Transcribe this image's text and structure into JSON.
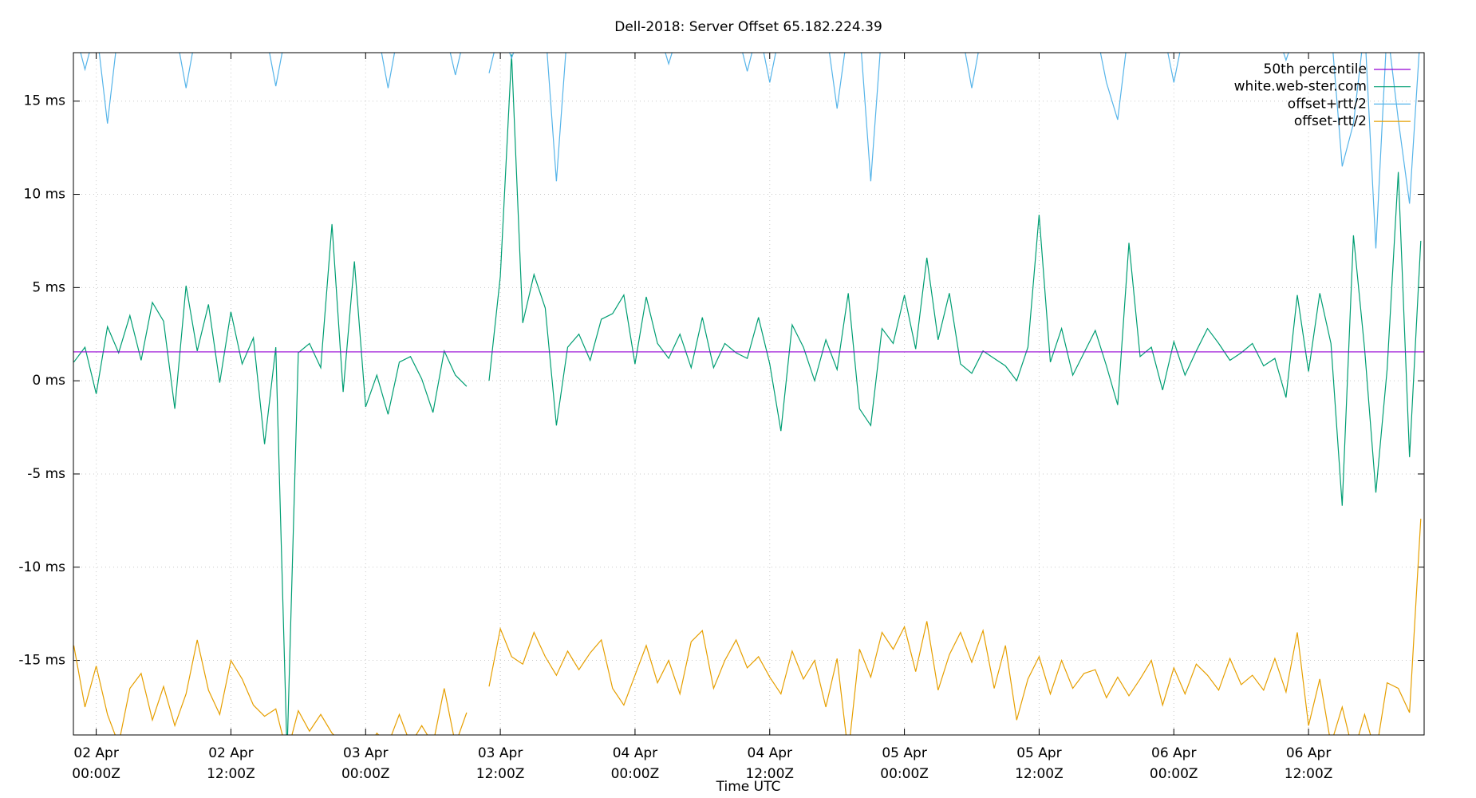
{
  "chart_data": {
    "type": "line",
    "title": "Dell-2018: Server Offset 65.182.224.39",
    "xlabel": "Time UTC",
    "grid": true,
    "legend": "top-right",
    "xlim": [
      "01 Apr 21:58Z",
      "06 Apr 22:18Z"
    ],
    "ylim": [
      -19,
      17.6
    ],
    "yticks": [
      {
        "value": -15,
        "label": "-15 ms"
      },
      {
        "value": -10,
        "label": "-10 ms"
      },
      {
        "value": -5,
        "label": "-5 ms"
      },
      {
        "value": 0,
        "label": "0 ms"
      },
      {
        "value": 5,
        "label": "5 ms"
      },
      {
        "value": 10,
        "label": "10 ms"
      },
      {
        "value": 15,
        "label": "15 ms"
      }
    ],
    "xticks": [
      {
        "value": "02 Apr 00:00Z",
        "label": [
          "02 Apr",
          "00:00Z"
        ]
      },
      {
        "value": "02 Apr 12:00Z",
        "label": [
          "02 Apr",
          "12:00Z"
        ]
      },
      {
        "value": "03 Apr 00:00Z",
        "label": [
          "03 Apr",
          "00:00Z"
        ]
      },
      {
        "value": "03 Apr 12:00Z",
        "label": [
          "03 Apr",
          "12:00Z"
        ]
      },
      {
        "value": "04 Apr 00:00Z",
        "label": [
          "04 Apr",
          "00:00Z"
        ]
      },
      {
        "value": "04 Apr 12:00Z",
        "label": [
          "04 Apr",
          "12:00Z"
        ]
      },
      {
        "value": "05 Apr 00:00Z",
        "label": [
          "05 Apr",
          "00:00Z"
        ]
      },
      {
        "value": "05 Apr 12:00Z",
        "label": [
          "05 Apr",
          "12:00Z"
        ]
      },
      {
        "value": "06 Apr 00:00Z",
        "label": [
          "06 Apr",
          "00:00Z"
        ]
      },
      {
        "value": "06 Apr 12:00Z",
        "label": [
          "06 Apr",
          "12:00Z"
        ]
      }
    ],
    "x": [
      "01 Apr 22:00Z",
      "01 Apr 23:00Z",
      "02 Apr 00:00Z",
      "02 Apr 01:00Z",
      "02 Apr 02:00Z",
      "02 Apr 03:00Z",
      "02 Apr 04:00Z",
      "02 Apr 05:00Z",
      "02 Apr 06:00Z",
      "02 Apr 07:00Z",
      "02 Apr 08:00Z",
      "02 Apr 09:00Z",
      "02 Apr 10:00Z",
      "02 Apr 11:00Z",
      "02 Apr 12:00Z",
      "02 Apr 13:00Z",
      "02 Apr 14:00Z",
      "02 Apr 15:00Z",
      "02 Apr 16:00Z",
      "02 Apr 17:00Z",
      "02 Apr 18:00Z",
      "02 Apr 19:00Z",
      "02 Apr 20:00Z",
      "02 Apr 21:00Z",
      "02 Apr 22:00Z",
      "02 Apr 23:00Z",
      "03 Apr 00:00Z",
      "03 Apr 01:00Z",
      "03 Apr 02:00Z",
      "03 Apr 03:00Z",
      "03 Apr 04:00Z",
      "03 Apr 05:00Z",
      "03 Apr 06:00Z",
      "03 Apr 07:00Z",
      "03 Apr 08:00Z",
      "03 Apr 09:00Z",
      "03 Apr 10:00Z",
      "03 Apr 11:00Z",
      "03 Apr 12:00Z",
      "03 Apr 13:00Z",
      "03 Apr 14:00Z",
      "03 Apr 15:00Z",
      "03 Apr 16:00Z",
      "03 Apr 17:00Z",
      "03 Apr 18:00Z",
      "03 Apr 19:00Z",
      "03 Apr 20:00Z",
      "03 Apr 21:00Z",
      "03 Apr 22:00Z",
      "03 Apr 23:00Z",
      "04 Apr 00:00Z",
      "04 Apr 01:00Z",
      "04 Apr 02:00Z",
      "04 Apr 03:00Z",
      "04 Apr 04:00Z",
      "04 Apr 05:00Z",
      "04 Apr 06:00Z",
      "04 Apr 07:00Z",
      "04 Apr 08:00Z",
      "04 Apr 09:00Z",
      "04 Apr 10:00Z",
      "04 Apr 11:00Z",
      "04 Apr 12:00Z",
      "04 Apr 13:00Z",
      "04 Apr 14:00Z",
      "04 Apr 15:00Z",
      "04 Apr 16:00Z",
      "04 Apr 17:00Z",
      "04 Apr 18:00Z",
      "04 Apr 19:00Z",
      "04 Apr 20:00Z",
      "04 Apr 21:00Z",
      "04 Apr 22:00Z",
      "04 Apr 23:00Z",
      "05 Apr 00:00Z",
      "05 Apr 01:00Z",
      "05 Apr 02:00Z",
      "05 Apr 03:00Z",
      "05 Apr 04:00Z",
      "05 Apr 05:00Z",
      "05 Apr 06:00Z",
      "05 Apr 07:00Z",
      "05 Apr 08:00Z",
      "05 Apr 09:00Z",
      "05 Apr 10:00Z",
      "05 Apr 11:00Z",
      "05 Apr 12:00Z",
      "05 Apr 13:00Z",
      "05 Apr 14:00Z",
      "05 Apr 15:00Z",
      "05 Apr 16:00Z",
      "05 Apr 17:00Z",
      "05 Apr 18:00Z",
      "05 Apr 19:00Z",
      "05 Apr 20:00Z",
      "05 Apr 21:00Z",
      "05 Apr 22:00Z",
      "05 Apr 23:00Z",
      "06 Apr 00:00Z",
      "06 Apr 01:00Z",
      "06 Apr 02:00Z",
      "06 Apr 03:00Z",
      "06 Apr 04:00Z",
      "06 Apr 05:00Z",
      "06 Apr 06:00Z",
      "06 Apr 07:00Z",
      "06 Apr 08:00Z",
      "06 Apr 09:00Z",
      "06 Apr 10:00Z",
      "06 Apr 11:00Z",
      "06 Apr 12:00Z",
      "06 Apr 13:00Z",
      "06 Apr 14:00Z",
      "06 Apr 15:00Z",
      "06 Apr 16:00Z",
      "06 Apr 17:00Z",
      "06 Apr 18:00Z",
      "06 Apr 19:00Z",
      "06 Apr 20:00Z",
      "06 Apr 21:00Z",
      "06 Apr 22:00Z"
    ],
    "series": [
      {
        "name": "50th percentile",
        "color": "#9400d3",
        "value": 1.55
      },
      {
        "name": "white.web-ster.com",
        "color": "#009e73",
        "values": [
          1.0,
          1.8,
          -0.7,
          2.9,
          1.5,
          3.5,
          1.1,
          4.2,
          3.2,
          -1.5,
          5.1,
          1.6,
          4.1,
          -0.1,
          3.7,
          0.9,
          2.3,
          -3.4,
          1.8,
          -20,
          1.5,
          2.0,
          0.7,
          8.4,
          -0.6,
          6.4,
          -1.4,
          0.3,
          -1.8,
          1.0,
          1.3,
          0.1,
          -1.7,
          1.6,
          0.3,
          -0.3,
          null,
          0.0,
          5.6,
          17.5,
          3.1,
          5.7,
          3.9,
          -2.4,
          1.8,
          2.5,
          1.1,
          3.3,
          3.6,
          4.6,
          0.9,
          4.5,
          2.0,
          1.2,
          2.5,
          0.7,
          3.4,
          0.7,
          2.0,
          1.5,
          1.2,
          3.4,
          0.9,
          -2.7,
          3.0,
          1.8,
          0.0,
          2.2,
          0.6,
          4.7,
          -1.5,
          -2.4,
          2.8,
          2.0,
          4.6,
          1.7,
          6.6,
          2.2,
          4.7,
          0.9,
          0.4,
          1.6,
          1.2,
          0.8,
          0.0,
          1.8,
          8.9,
          1.0,
          2.8,
          0.3,
          1.5,
          2.7,
          0.8,
          -1.3,
          7.4,
          1.3,
          1.8,
          -0.5,
          2.1,
          0.3,
          1.6,
          2.8,
          2.0,
          1.1,
          1.5,
          2.0,
          0.8,
          1.2,
          -0.9,
          4.6,
          0.5,
          4.7,
          2.0,
          -6.7,
          7.8,
          1.7,
          -6.0,
          0.6,
          11.2,
          -4.1,
          7.5
        ]
      },
      {
        "name": "offset+rtt/2",
        "color": "#56b4e9",
        "values": [
          19,
          16.7,
          19,
          13.8,
          19,
          19,
          19,
          19,
          19,
          19,
          15.7,
          19,
          19,
          19,
          19,
          19,
          19,
          19,
          15.8,
          19,
          19,
          19,
          19,
          19,
          19,
          19,
          19,
          19,
          15.7,
          19,
          19,
          19,
          19,
          19,
          16.4,
          19,
          null,
          16.5,
          19,
          17.3,
          19,
          19,
          19,
          10.7,
          19,
          19,
          19,
          19,
          19,
          19,
          19,
          19,
          19,
          17.0,
          19,
          19,
          19,
          19,
          19,
          19,
          16.6,
          19,
          16.0,
          19,
          19,
          19,
          19,
          19,
          14.6,
          19,
          19,
          10.7,
          19,
          19,
          19,
          19,
          19,
          19,
          19,
          19,
          15.7,
          19,
          19,
          19,
          19,
          19,
          19,
          19,
          19,
          19,
          19,
          19,
          16.0,
          14.0,
          19,
          19,
          19,
          19,
          16.0,
          19,
          19,
          19,
          19,
          19,
          19,
          19,
          19,
          19,
          17.2,
          19,
          19,
          19,
          19,
          11.5,
          13.8,
          19,
          7.1,
          19,
          14.0,
          9.5,
          19
        ]
      },
      {
        "name": "offset-rtt/2",
        "color": "#e69f00",
        "values": [
          -14.2,
          -17.5,
          -15.3,
          -17.9,
          -19.5,
          -16.5,
          -15.7,
          -18.2,
          -16.4,
          -18.5,
          -16.8,
          -13.9,
          -16.6,
          -17.9,
          -15.0,
          -16.0,
          -17.4,
          -18.0,
          -17.6,
          -20,
          -17.7,
          -18.8,
          -17.9,
          -18.9,
          -19.5,
          -19.5,
          -20,
          -18.9,
          -19.5,
          -17.9,
          -19.5,
          -18.5,
          -19.5,
          -16.5,
          -19.5,
          -17.8,
          null,
          -16.4,
          -13.3,
          -14.8,
          -15.2,
          -13.5,
          -14.8,
          -15.8,
          -14.5,
          -15.5,
          -14.6,
          -13.9,
          -16.5,
          -17.4,
          -15.8,
          -14.2,
          -16.2,
          -15.0,
          -16.8,
          -14.0,
          -13.4,
          -16.5,
          -15.0,
          -13.9,
          -15.4,
          -14.8,
          -15.9,
          -16.8,
          -14.5,
          -16.0,
          -15.0,
          -17.5,
          -14.9,
          -20,
          -14.4,
          -15.9,
          -13.5,
          -14.4,
          -13.2,
          -15.6,
          -12.9,
          -16.6,
          -14.7,
          -13.5,
          -15.1,
          -13.4,
          -16.5,
          -14.2,
          -18.2,
          -16.0,
          -14.8,
          -16.8,
          -15.0,
          -16.5,
          -15.7,
          -15.5,
          -17.0,
          -15.9,
          -16.9,
          -16.0,
          -15.0,
          -17.4,
          -15.4,
          -16.8,
          -15.2,
          -15.8,
          -16.6,
          -14.9,
          -16.3,
          -15.8,
          -16.6,
          -14.9,
          -16.7,
          -13.5,
          -18.5,
          -16.0,
          -19.5,
          -17.5,
          -20,
          -17.9,
          -20,
          -16.2,
          -16.5,
          -17.8,
          -7.4
        ]
      }
    ]
  }
}
